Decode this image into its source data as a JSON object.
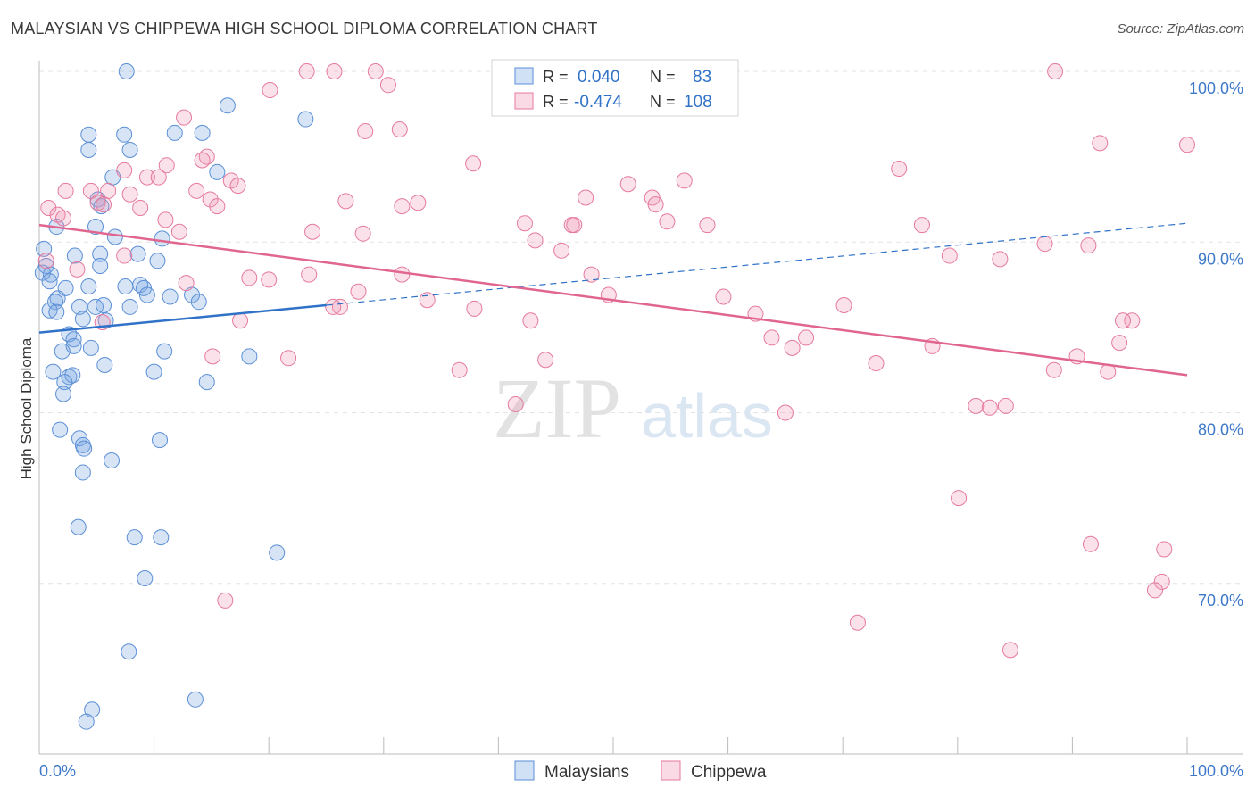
{
  "title": "MALAYSIAN VS CHIPPEWA HIGH SCHOOL DIPLOMA CORRELATION CHART",
  "source": "Source: ZipAtlas.com",
  "watermark": {
    "zip": "ZIP",
    "atlas": "atlas"
  },
  "chart_data": {
    "type": "scatter",
    "ylabel": "High School Diploma",
    "xlim": [
      0,
      100
    ],
    "ylim": [
      59.5,
      102.5
    ],
    "x_tick_labels": [
      {
        "label": "0.0%",
        "value": 0
      },
      {
        "label": "100.0%",
        "value": 100
      }
    ],
    "y_tick_labels": [
      {
        "label": "100.0%",
        "value": 99
      },
      {
        "label": "90.0%",
        "value": 89
      },
      {
        "label": "80.0%",
        "value": 79
      },
      {
        "label": "70.0%",
        "value": 69
      }
    ],
    "legend_stats": [
      {
        "series": "Malaysians",
        "r_label": "R =",
        "r": "0.040",
        "n_label": "N =",
        "n": "83",
        "color": "#5b8fd6"
      },
      {
        "series": "Chippewa",
        "r_label": "R =",
        "r": "-0.474",
        "n_label": "N =",
        "n": "108",
        "color": "#e57a9e"
      }
    ],
    "series": [
      {
        "name": "Malaysians",
        "color": "#5b8fd6",
        "fill": "rgba(120,165,225,0.30)",
        "trend_color": "#2f72c8",
        "trend": {
          "x0": 0,
          "y0": 84.7,
          "x1": 25,
          "y1": 86.3,
          "dash_to_x": 100,
          "dash_to_y": 91.1
        },
        "points": [
          [
            7.6,
            100
          ],
          [
            16.4,
            98
          ],
          [
            23.2,
            97.2
          ],
          [
            4.3,
            96.3
          ],
          [
            7.4,
            96.3
          ],
          [
            11.8,
            96.4
          ],
          [
            14.2,
            96.4
          ],
          [
            4.3,
            95.4
          ],
          [
            7.9,
            95.4
          ],
          [
            6.4,
            93.8
          ],
          [
            15.5,
            94.1
          ],
          [
            5.1,
            92.5
          ],
          [
            5.4,
            92.1
          ],
          [
            1.5,
            90.9
          ],
          [
            4.9,
            90.9
          ],
          [
            6.6,
            90.3
          ],
          [
            10.7,
            90.2
          ],
          [
            0.4,
            89.6
          ],
          [
            3.1,
            89.2
          ],
          [
            5.3,
            89.3
          ],
          [
            8.6,
            89.3
          ],
          [
            10.3,
            88.9
          ],
          [
            0.6,
            88.6
          ],
          [
            1,
            88.1
          ],
          [
            5.3,
            88.6
          ],
          [
            0.3,
            88.2
          ],
          [
            0.9,
            87.7
          ],
          [
            2.3,
            87.3
          ],
          [
            4.3,
            87.4
          ],
          [
            7.5,
            87.4
          ],
          [
            8.8,
            87.5
          ],
          [
            9.1,
            87.3
          ],
          [
            9.4,
            86.9
          ],
          [
            11.4,
            86.8
          ],
          [
            13.3,
            86.9
          ],
          [
            1.6,
            86.7
          ],
          [
            1.4,
            86.5
          ],
          [
            3.5,
            86.2
          ],
          [
            4.9,
            86.2
          ],
          [
            5.6,
            86.3
          ],
          [
            7.9,
            86.2
          ],
          [
            13.9,
            86.5
          ],
          [
            0.9,
            86
          ],
          [
            1.5,
            85.9
          ],
          [
            3.8,
            85.5
          ],
          [
            5.8,
            85.4
          ],
          [
            2.6,
            84.6
          ],
          [
            3,
            84.3
          ],
          [
            3,
            83.9
          ],
          [
            2,
            83.6
          ],
          [
            4.5,
            83.8
          ],
          [
            10.9,
            83.6
          ],
          [
            18.3,
            83.3
          ],
          [
            5.7,
            82.8
          ],
          [
            1.2,
            82.4
          ],
          [
            10,
            82.4
          ],
          [
            2.6,
            82.1
          ],
          [
            2.9,
            82.2
          ],
          [
            2.2,
            81.8
          ],
          [
            14.6,
            81.8
          ],
          [
            2.1,
            81.1
          ],
          [
            1.8,
            79
          ],
          [
            3.5,
            78.5
          ],
          [
            10.5,
            78.4
          ],
          [
            3.8,
            78.1
          ],
          [
            3.9,
            77.9
          ],
          [
            6.3,
            77.2
          ],
          [
            3.8,
            76.5
          ],
          [
            3.4,
            73.3
          ],
          [
            8.3,
            72.7
          ],
          [
            10.6,
            72.7
          ],
          [
            20.7,
            71.8
          ],
          [
            9.2,
            70.3
          ],
          [
            7.8,
            66
          ],
          [
            13.6,
            63.2
          ],
          [
            4.6,
            62.6
          ],
          [
            4.1,
            61.9
          ]
        ]
      },
      {
        "name": "Chippewa",
        "color": "#e57a9e",
        "fill": "rgba(240,150,180,0.28)",
        "trend_color": "#e0668f",
        "trend": {
          "x0": 0,
          "y0": 91,
          "x1": 100,
          "y1": 82.2
        },
        "points": [
          [
            23.3,
            100
          ],
          [
            25.7,
            100
          ],
          [
            29.3,
            100
          ],
          [
            88.5,
            100
          ],
          [
            20.1,
            98.9
          ],
          [
            30.4,
            99.2
          ],
          [
            12.6,
            97.3
          ],
          [
            28.4,
            96.5
          ],
          [
            31.4,
            96.6
          ],
          [
            14.6,
            95
          ],
          [
            14.2,
            94.8
          ],
          [
            11.1,
            94.5
          ],
          [
            9.4,
            93.8
          ],
          [
            10.4,
            93.8
          ],
          [
            7.4,
            94.2
          ],
          [
            37.8,
            94.6
          ],
          [
            74.9,
            94.3
          ],
          [
            92.4,
            95.8
          ],
          [
            100,
            95.7
          ],
          [
            16.7,
            93.6
          ],
          [
            17.3,
            93.3
          ],
          [
            51.3,
            93.4
          ],
          [
            56.2,
            93.6
          ],
          [
            4.5,
            93
          ],
          [
            6,
            93
          ],
          [
            13.7,
            93
          ],
          [
            2.3,
            93
          ],
          [
            7.9,
            92.8
          ],
          [
            14.9,
            92.5
          ],
          [
            26.7,
            92.4
          ],
          [
            31.6,
            92.1
          ],
          [
            33,
            92.3
          ],
          [
            47.6,
            92.6
          ],
          [
            53.4,
            92.6
          ],
          [
            53.7,
            92.2
          ],
          [
            5.1,
            92.3
          ],
          [
            5.6,
            92.2
          ],
          [
            15.5,
            92.1
          ],
          [
            8.8,
            92
          ],
          [
            0.8,
            92
          ],
          [
            1.6,
            91.6
          ],
          [
            2.1,
            91.4
          ],
          [
            11,
            91.3
          ],
          [
            42.3,
            91.1
          ],
          [
            46.4,
            91
          ],
          [
            54.7,
            91.2
          ],
          [
            58.2,
            91
          ],
          [
            46.6,
            91
          ],
          [
            76.9,
            91
          ],
          [
            12.2,
            90.6
          ],
          [
            23.8,
            90.6
          ],
          [
            28.2,
            90.5
          ],
          [
            43.2,
            90.1
          ],
          [
            87.6,
            89.9
          ],
          [
            91.4,
            89.8
          ],
          [
            45.5,
            89.5
          ],
          [
            7.4,
            89.2
          ],
          [
            0.6,
            88.9
          ],
          [
            79.3,
            89.2
          ],
          [
            83.7,
            89
          ],
          [
            3.3,
            88.4
          ],
          [
            48.1,
            88.1
          ],
          [
            31.6,
            88.1
          ],
          [
            23.5,
            88.1
          ],
          [
            18.3,
            87.9
          ],
          [
            20,
            87.8
          ],
          [
            12.8,
            87.6
          ],
          [
            27.8,
            87.1
          ],
          [
            49.6,
            86.9
          ],
          [
            59.6,
            86.8
          ],
          [
            33.8,
            86.6
          ],
          [
            37.9,
            86.1
          ],
          [
            70.1,
            86.3
          ],
          [
            5.5,
            85.3
          ],
          [
            17.5,
            85.4
          ],
          [
            42.8,
            85.4
          ],
          [
            62.4,
            85.8
          ],
          [
            95.2,
            85.4
          ],
          [
            94.4,
            85.4
          ],
          [
            63.8,
            84.4
          ],
          [
            66.8,
            84.4
          ],
          [
            65.6,
            83.8
          ],
          [
            94.1,
            84.1
          ],
          [
            77.8,
            83.9
          ],
          [
            15.1,
            83.3
          ],
          [
            21.7,
            83.2
          ],
          [
            44.1,
            83.1
          ],
          [
            90.4,
            83.3
          ],
          [
            36.6,
            82.5
          ],
          [
            72.9,
            82.9
          ],
          [
            88.4,
            82.5
          ],
          [
            93.1,
            82.4
          ],
          [
            41.5,
            80.5
          ],
          [
            84.2,
            80.4
          ],
          [
            65,
            80
          ],
          [
            81.6,
            80.4
          ],
          [
            82.8,
            80.3
          ],
          [
            80.1,
            75
          ],
          [
            91.6,
            72.3
          ],
          [
            98,
            72
          ],
          [
            97.8,
            70.1
          ],
          [
            97.2,
            69.6
          ],
          [
            16.2,
            69
          ],
          [
            71.3,
            67.7
          ],
          [
            84.6,
            66.1
          ],
          [
            26.2,
            86.2
          ],
          [
            25.6,
            86.2
          ]
        ]
      }
    ]
  }
}
